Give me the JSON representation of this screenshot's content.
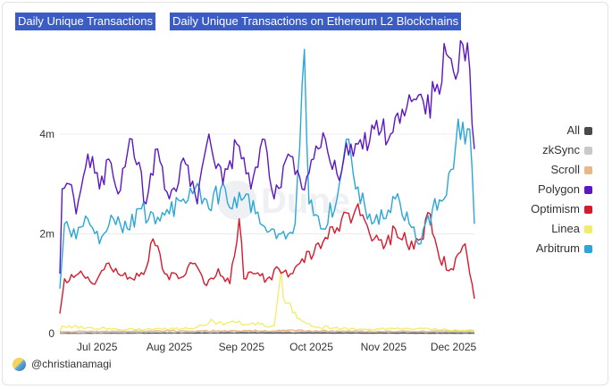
{
  "titles": {
    "tab": "Daily Unique Transactions",
    "main": "Daily Unique Transactions on Ethereum L2 Blockchains"
  },
  "footer": {
    "author": "@christianamagi"
  },
  "legend": [
    {
      "label": "All",
      "color": "#4a4a4a"
    },
    {
      "label": "zkSync",
      "color": "#c9c9c9"
    },
    {
      "label": "Scroll",
      "color": "#e8b887"
    },
    {
      "label": "Polygon",
      "color": "#5b17c4"
    },
    {
      "label": "Optimism",
      "color": "#d61a2e"
    },
    {
      "label": "Linea",
      "color": "#f2ec6a"
    },
    {
      "label": "Arbitrum",
      "color": "#2aa6d8"
    }
  ],
  "watermark": "Dune",
  "chart_data": {
    "type": "line",
    "x_range": [
      "2025-06-15",
      "2025-12-10"
    ],
    "x_ticks": [
      "Jul 2025",
      "Aug 2025",
      "Sep 2025",
      "Oct 2025",
      "Nov 2025",
      "Dec 2025"
    ],
    "x_tick_dates": [
      "2025-07-01",
      "2025-08-01",
      "2025-09-01",
      "2025-10-01",
      "2025-11-01",
      "2025-12-01"
    ],
    "y_ticks": [
      "0",
      "2m",
      "4m"
    ],
    "y_tick_values": [
      0,
      2000000,
      4000000
    ],
    "ylim": [
      0,
      5900000
    ],
    "grid": true,
    "legend_position": "right",
    "series": [
      {
        "name": "Polygon",
        "color": "#5b17c4",
        "keypoints": [
          [
            "2025-06-15",
            1200000
          ],
          [
            "2025-06-16",
            2900000
          ],
          [
            "2025-06-19",
            3000000
          ],
          [
            "2025-06-22",
            2400000
          ],
          [
            "2025-06-27",
            3600000
          ],
          [
            "2025-07-02",
            2900000
          ],
          [
            "2025-07-06",
            3500000
          ],
          [
            "2025-07-10",
            2800000
          ],
          [
            "2025-07-16",
            3900000
          ],
          [
            "2025-07-22",
            2600000
          ],
          [
            "2025-07-27",
            3700000
          ],
          [
            "2025-08-01",
            2700000
          ],
          [
            "2025-08-08",
            3400000
          ],
          [
            "2025-08-13",
            2600000
          ],
          [
            "2025-08-18",
            4000000
          ],
          [
            "2025-08-24",
            3000000
          ],
          [
            "2025-08-30",
            3800000
          ],
          [
            "2025-09-05",
            2900000
          ],
          [
            "2025-09-10",
            3900000
          ],
          [
            "2025-09-15",
            2700000
          ],
          [
            "2025-09-21",
            3600000
          ],
          [
            "2025-09-27",
            2900000
          ],
          [
            "2025-10-02",
            3500000
          ],
          [
            "2025-10-07",
            3900000
          ],
          [
            "2025-10-12",
            3200000
          ],
          [
            "2025-10-18",
            3800000
          ],
          [
            "2025-10-23",
            3700000
          ],
          [
            "2025-10-28",
            4100000
          ],
          [
            "2025-11-04",
            4000000
          ],
          [
            "2025-11-09",
            4500000
          ],
          [
            "2025-11-14",
            4700000
          ],
          [
            "2025-11-19",
            4400000
          ],
          [
            "2025-11-24",
            5000000
          ],
          [
            "2025-11-28",
            5600000
          ],
          [
            "2025-12-02",
            5100000
          ],
          [
            "2025-12-05",
            5800000
          ],
          [
            "2025-12-08",
            5300000
          ],
          [
            "2025-12-09",
            4200000
          ],
          [
            "2025-12-10",
            3700000
          ]
        ]
      },
      {
        "name": "Arbitrum",
        "color": "#2aa6d8",
        "keypoints": [
          [
            "2025-06-15",
            900000
          ],
          [
            "2025-06-17",
            2200000
          ],
          [
            "2025-06-22",
            1900000
          ],
          [
            "2025-06-27",
            2300000
          ],
          [
            "2025-07-02",
            1800000
          ],
          [
            "2025-07-08",
            2300000
          ],
          [
            "2025-07-14",
            2100000
          ],
          [
            "2025-07-20",
            2500000
          ],
          [
            "2025-07-26",
            2200000
          ],
          [
            "2025-08-01",
            2400000
          ],
          [
            "2025-08-07",
            2700000
          ],
          [
            "2025-08-12",
            2900000
          ],
          [
            "2025-08-18",
            2500000
          ],
          [
            "2025-08-23",
            2900000
          ],
          [
            "2025-08-28",
            2500000
          ],
          [
            "2025-09-03",
            2800000
          ],
          [
            "2025-09-09",
            2200000
          ],
          [
            "2025-09-14",
            2100000
          ],
          [
            "2025-09-20",
            1900000
          ],
          [
            "2025-09-24",
            2200000
          ],
          [
            "2025-09-28",
            5700000
          ],
          [
            "2025-09-30",
            2600000
          ],
          [
            "2025-10-05",
            2100000
          ],
          [
            "2025-10-12",
            2700000
          ],
          [
            "2025-10-17",
            3900000
          ],
          [
            "2025-10-20",
            2900000
          ],
          [
            "2025-10-26",
            2400000
          ],
          [
            "2025-11-01",
            2300000
          ],
          [
            "2025-11-06",
            2700000
          ],
          [
            "2025-11-12",
            2200000
          ],
          [
            "2025-11-17",
            1800000
          ],
          [
            "2025-11-22",
            2500000
          ],
          [
            "2025-11-27",
            2700000
          ],
          [
            "2025-12-01",
            3300000
          ],
          [
            "2025-12-03",
            4300000
          ],
          [
            "2025-12-06",
            3800000
          ],
          [
            "2025-12-08",
            4100000
          ],
          [
            "2025-12-09",
            3300000
          ],
          [
            "2025-12-10",
            2200000
          ]
        ]
      },
      {
        "name": "Optimism",
        "color": "#d61a2e",
        "keypoints": [
          [
            "2025-06-15",
            400000
          ],
          [
            "2025-06-17",
            1100000
          ],
          [
            "2025-06-23",
            1200000
          ],
          [
            "2025-06-29",
            1000000
          ],
          [
            "2025-07-05",
            1400000
          ],
          [
            "2025-07-10",
            1200000
          ],
          [
            "2025-07-16",
            1100000
          ],
          [
            "2025-07-22",
            1300000
          ],
          [
            "2025-07-25",
            1900000
          ],
          [
            "2025-07-30",
            1200000
          ],
          [
            "2025-08-05",
            1100000
          ],
          [
            "2025-08-11",
            1400000
          ],
          [
            "2025-08-16",
            1000000
          ],
          [
            "2025-08-22",
            1300000
          ],
          [
            "2025-08-27",
            1000000
          ],
          [
            "2025-08-31",
            2300000
          ],
          [
            "2025-09-02",
            1100000
          ],
          [
            "2025-09-07",
            1200000
          ],
          [
            "2025-09-12",
            1100000
          ],
          [
            "2025-09-17",
            1300000
          ],
          [
            "2025-09-22",
            1200000
          ],
          [
            "2025-09-27",
            1500000
          ],
          [
            "2025-10-02",
            1600000
          ],
          [
            "2025-10-08",
            1900000
          ],
          [
            "2025-10-14",
            2300000
          ],
          [
            "2025-10-20",
            2500000
          ],
          [
            "2025-10-26",
            2000000
          ],
          [
            "2025-11-01",
            1700000
          ],
          [
            "2025-11-06",
            2100000
          ],
          [
            "2025-11-11",
            1800000
          ],
          [
            "2025-11-17",
            1900000
          ],
          [
            "2025-11-21",
            2400000
          ],
          [
            "2025-11-25",
            1500000
          ],
          [
            "2025-11-30",
            1300000
          ],
          [
            "2025-12-03",
            1600000
          ],
          [
            "2025-12-06",
            1800000
          ],
          [
            "2025-12-08",
            1200000
          ],
          [
            "2025-12-10",
            700000
          ]
        ]
      },
      {
        "name": "Linea",
        "color": "#f2ec6a",
        "keypoints": [
          [
            "2025-06-15",
            50000
          ],
          [
            "2025-06-16",
            150000
          ],
          [
            "2025-07-10",
            80000
          ],
          [
            "2025-08-10",
            100000
          ],
          [
            "2025-08-20",
            250000
          ],
          [
            "2025-09-05",
            200000
          ],
          [
            "2025-09-15",
            150000
          ],
          [
            "2025-09-18",
            1250000
          ],
          [
            "2025-09-20",
            600000
          ],
          [
            "2025-09-25",
            300000
          ],
          [
            "2025-10-01",
            150000
          ],
          [
            "2025-10-20",
            80000
          ],
          [
            "2025-11-10",
            100000
          ],
          [
            "2025-12-10",
            60000
          ]
        ]
      },
      {
        "name": "Scroll",
        "color": "#e8b887",
        "keypoints": [
          [
            "2025-06-15",
            40000
          ],
          [
            "2025-08-01",
            50000
          ],
          [
            "2025-09-20",
            60000
          ],
          [
            "2025-11-01",
            40000
          ],
          [
            "2025-12-10",
            50000
          ]
        ]
      },
      {
        "name": "zkSync",
        "color": "#c9c9c9",
        "keypoints": [
          [
            "2025-06-15",
            20000
          ],
          [
            "2025-08-01",
            30000
          ],
          [
            "2025-09-20",
            40000
          ],
          [
            "2025-11-01",
            30000
          ],
          [
            "2025-12-10",
            30000
          ]
        ]
      },
      {
        "name": "All",
        "color": "#4a4a4a",
        "keypoints": [
          [
            "2025-06-15",
            10000
          ],
          [
            "2025-09-01",
            15000
          ],
          [
            "2025-12-10",
            10000
          ]
        ]
      }
    ]
  }
}
